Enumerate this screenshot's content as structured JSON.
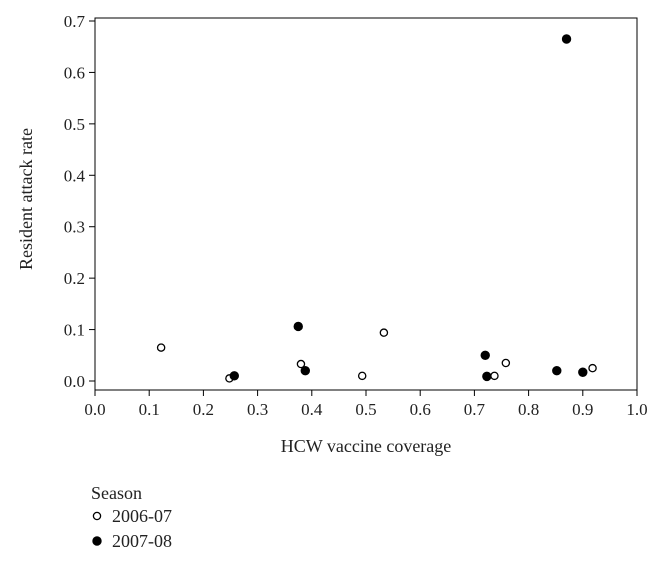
{
  "chart_data": {
    "type": "scatter",
    "title": "",
    "xlabel": "HCW vaccine coverage",
    "ylabel": "Resident attack rate",
    "xlim": [
      0.0,
      1.0
    ],
    "ylim": [
      0.0,
      0.7
    ],
    "xticks": [
      "0.0",
      "0.1",
      "0.2",
      "0.3",
      "0.4",
      "0.5",
      "0.6",
      "0.7",
      "0.8",
      "0.9",
      "1.0"
    ],
    "yticks": [
      "0.0",
      "0.1",
      "0.2",
      "0.3",
      "0.4",
      "0.5",
      "0.6",
      "0.7"
    ],
    "grid": false,
    "legend": {
      "title": "Season",
      "placement": "bottom-left"
    },
    "series": [
      {
        "name": "2006-07",
        "marker": "open-circle",
        "color": "#000000",
        "points": [
          {
            "x": 0.122,
            "y": 0.065
          },
          {
            "x": 0.248,
            "y": 0.005
          },
          {
            "x": 0.38,
            "y": 0.033
          },
          {
            "x": 0.493,
            "y": 0.01
          },
          {
            "x": 0.533,
            "y": 0.094
          },
          {
            "x": 0.737,
            "y": 0.01
          },
          {
            "x": 0.758,
            "y": 0.035
          },
          {
            "x": 0.918,
            "y": 0.025
          }
        ]
      },
      {
        "name": "2007-08",
        "marker": "filled-circle",
        "color": "#000000",
        "points": [
          {
            "x": 0.257,
            "y": 0.01
          },
          {
            "x": 0.375,
            "y": 0.106
          },
          {
            "x": 0.388,
            "y": 0.02
          },
          {
            "x": 0.72,
            "y": 0.05
          },
          {
            "x": 0.723,
            "y": 0.009
          },
          {
            "x": 0.852,
            "y": 0.02
          },
          {
            "x": 0.87,
            "y": 0.665
          },
          {
            "x": 0.9,
            "y": 0.017
          }
        ]
      }
    ]
  }
}
